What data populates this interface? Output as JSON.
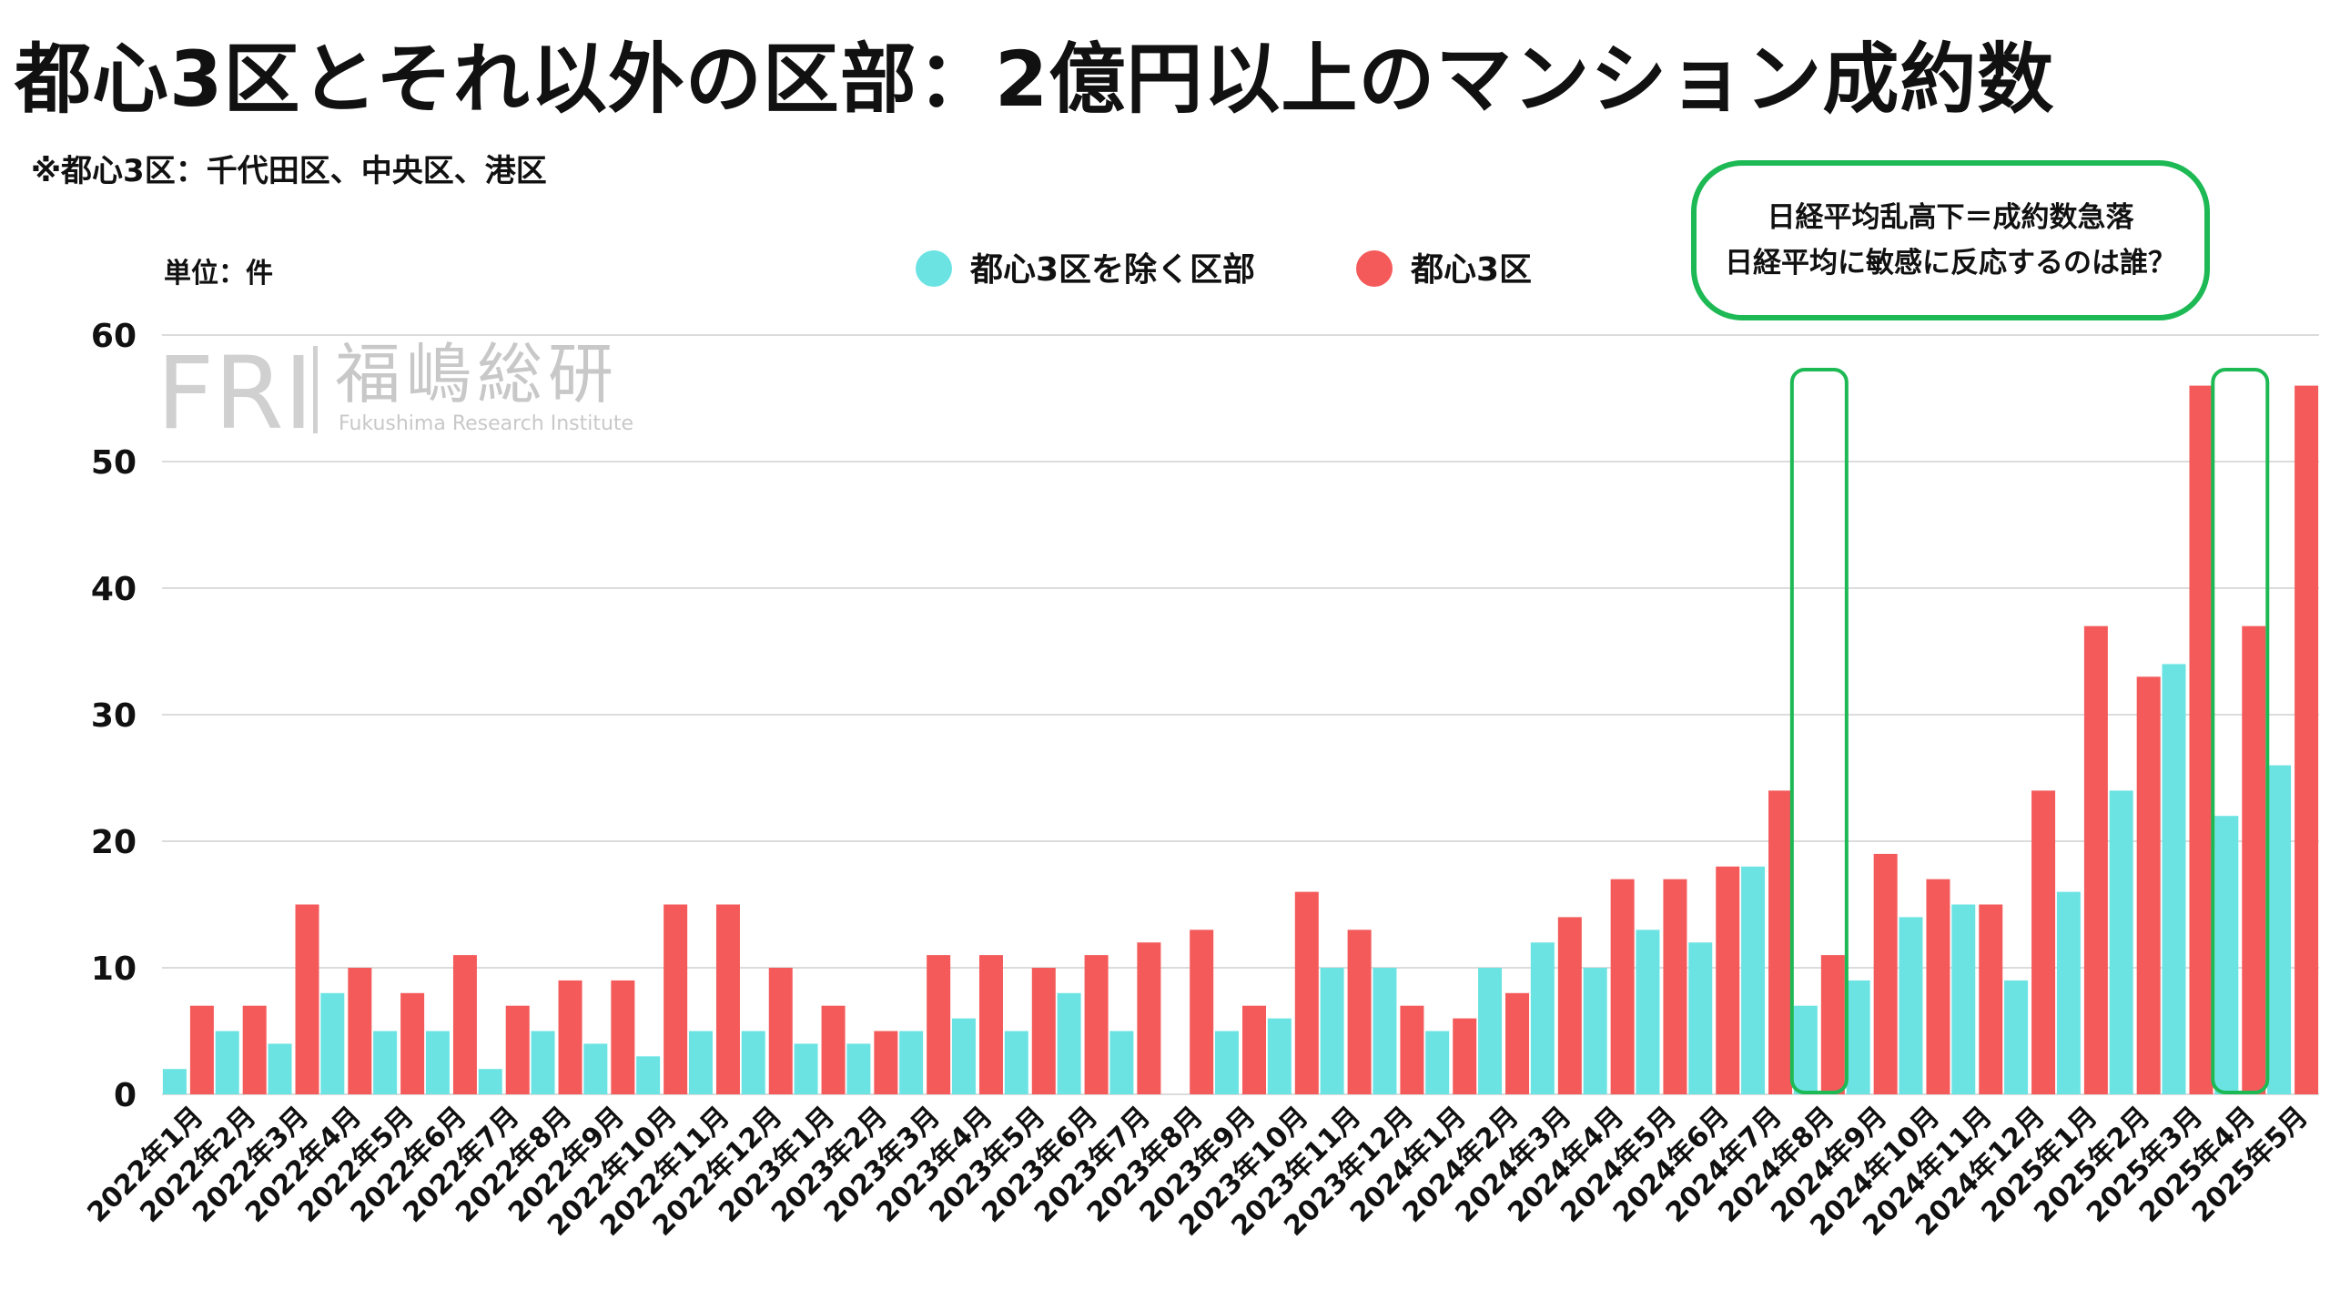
{
  "header": {
    "title": "都心3区とそれ以外の区部：2億円以上のマンション成約数",
    "subtitle": "※都心3区：千代田区、中央区、港区"
  },
  "annotation": {
    "line1": "日経平均乱高下＝成約数急落",
    "line2": "日経平均に敏感に反応するのは誰？",
    "color": "#1db954"
  },
  "logo": {
    "mark": "FRI",
    "name": "福嶋総研",
    "english": "Fukushima Research Institute"
  },
  "chart_data": {
    "type": "bar",
    "unit_label": "単位：件",
    "ylim": [
      0,
      60
    ],
    "yticks": [
      0,
      10,
      20,
      30,
      40,
      50,
      60
    ],
    "grid": true,
    "legend_position": "top-center",
    "categories": [
      "2022年1月",
      "2022年2月",
      "2022年3月",
      "2022年4月",
      "2022年5月",
      "2022年6月",
      "2022年7月",
      "2022年8月",
      "2022年9月",
      "2022年10月",
      "2022年11月",
      "2022年12月",
      "2023年1月",
      "2023年2月",
      "2023年3月",
      "2023年4月",
      "2023年5月",
      "2023年6月",
      "2023年7月",
      "2023年8月",
      "2023年9月",
      "2023年10月",
      "2023年11月",
      "2023年12月",
      "2024年1月",
      "2024年2月",
      "2024年3月",
      "2024年4月",
      "2024年5月",
      "2024年6月",
      "2024年7月",
      "2024年8月",
      "2024年9月",
      "2024年10月",
      "2024年11月",
      "2024年12月",
      "2025年1月",
      "2025年2月",
      "2025年3月",
      "2025年4月",
      "2025年5月"
    ],
    "series": [
      {
        "name": "都心3区を除く区部",
        "color": "#6ce3e3",
        "values": [
          2,
          5,
          4,
          8,
          5,
          5,
          2,
          5,
          4,
          3,
          5,
          5,
          4,
          4,
          5,
          6,
          5,
          8,
          5,
          0,
          5,
          6,
          10,
          10,
          5,
          10,
          12,
          10,
          13,
          12,
          18,
          7,
          9,
          14,
          15,
          9,
          16,
          24,
          34,
          22,
          26
        ]
      },
      {
        "name": "都心3区",
        "color": "#f55a5a",
        "values": [
          7,
          7,
          15,
          10,
          8,
          11,
          7,
          9,
          9,
          15,
          15,
          10,
          7,
          5,
          11,
          11,
          10,
          11,
          12,
          13,
          7,
          16,
          13,
          7,
          6,
          8,
          14,
          17,
          17,
          18,
          24,
          11,
          19,
          17,
          15,
          24,
          37,
          33,
          56,
          37,
          56
        ]
      }
    ],
    "highlighted_categories": [
      "2024年8月",
      "2025年4月"
    ]
  }
}
